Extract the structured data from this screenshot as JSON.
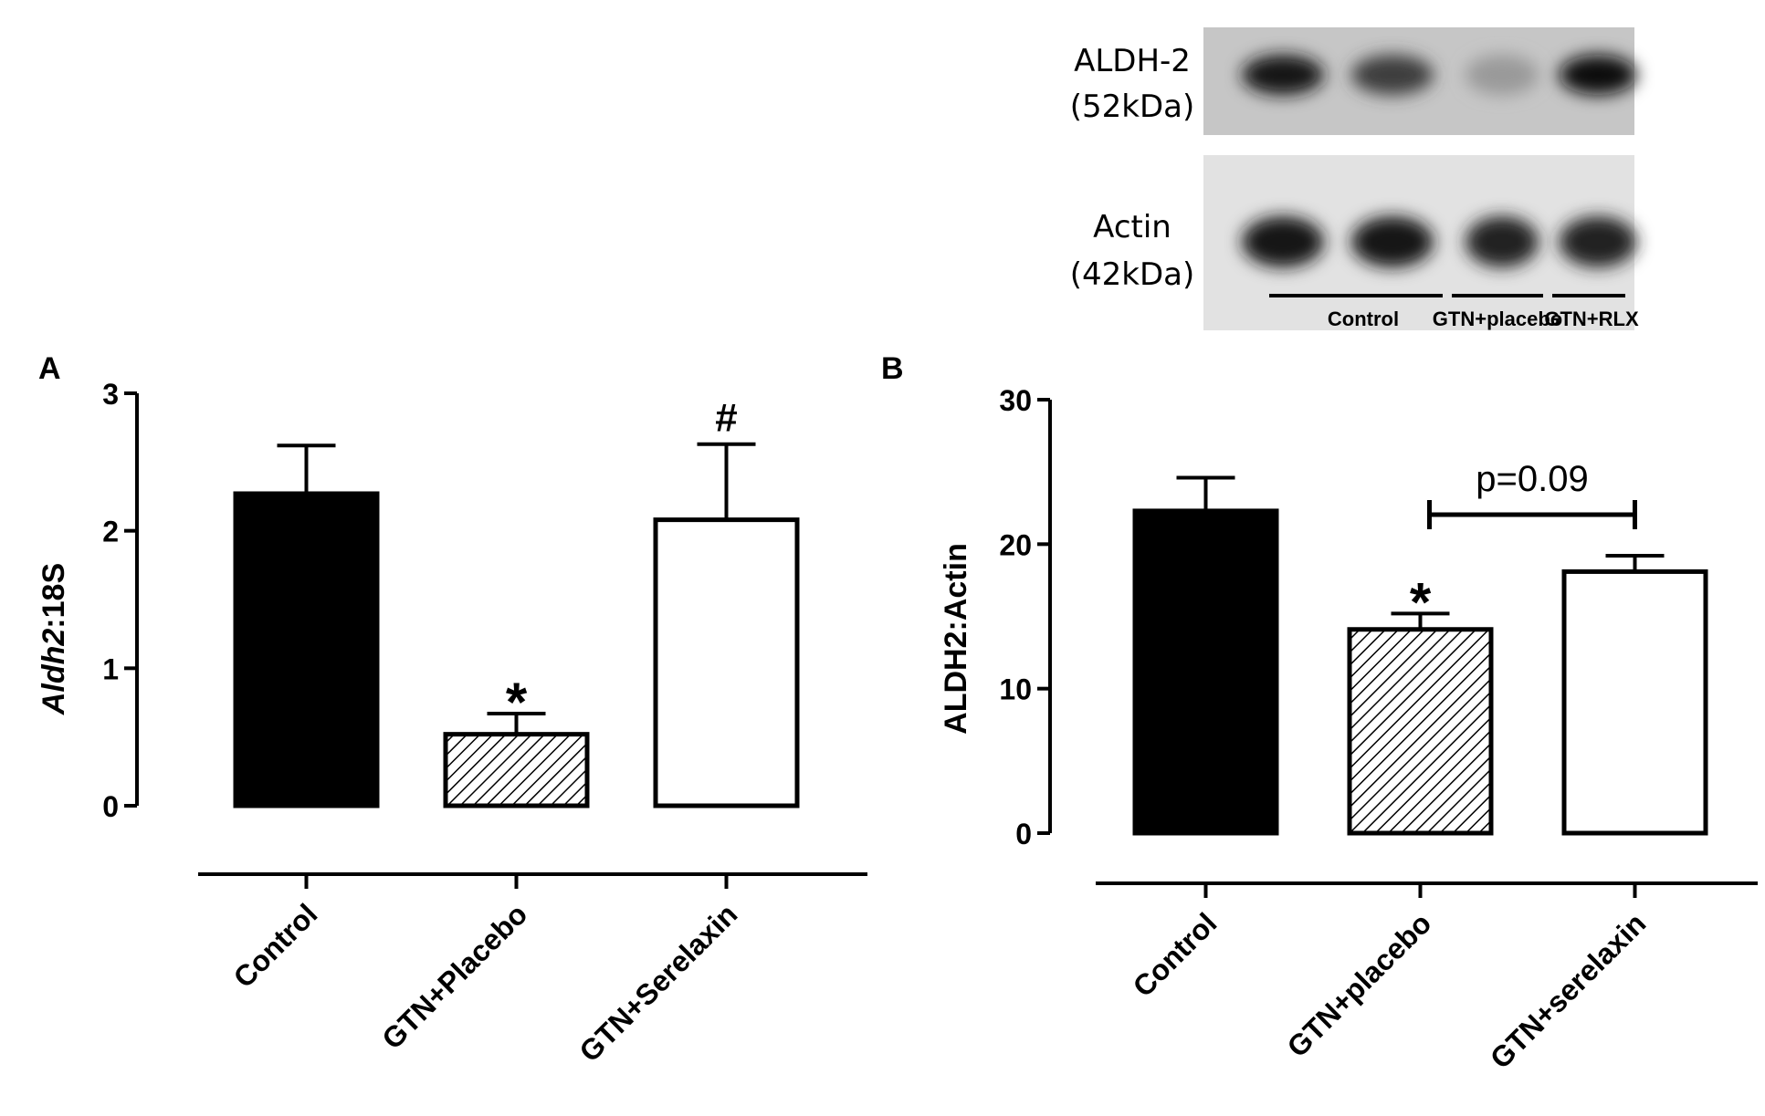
{
  "blot": {
    "bands": [
      {
        "name": "ALDH-2",
        "size": "(52kDa)",
        "intensities": [
          0.95,
          0.75,
          0.25,
          1.0
        ]
      },
      {
        "name": "Actin",
        "size": "(42kDa)",
        "intensities": [
          0.95,
          0.95,
          0.9,
          0.9
        ]
      }
    ],
    "groups": [
      "Control",
      "GTN+placebo",
      "GTN+RLX"
    ]
  },
  "chart_data": [
    {
      "type": "bar",
      "panel_label": "A",
      "ylabel_italic": "Aldh2",
      "ylabel_rest": ":18S",
      "ylim": [
        0,
        3
      ],
      "yticks": [
        0,
        1,
        2,
        3
      ],
      "categories": [
        "Control",
        "GTN+Placebo",
        "GTN+Serelaxin"
      ],
      "values": [
        2.27,
        0.52,
        2.08
      ],
      "errors": [
        0.35,
        0.15,
        0.55
      ],
      "fills": [
        "#000000",
        "hatch",
        "#ffffff"
      ],
      "annotations": [
        "",
        "*",
        "#"
      ]
    },
    {
      "type": "bar",
      "panel_label": "B",
      "ylabel": "ALDH2:Actin",
      "ylim": [
        0,
        30
      ],
      "yticks": [
        0,
        10,
        20,
        30
      ],
      "categories": [
        "Control",
        "GTN+placebo",
        "GTN+serelaxin"
      ],
      "values": [
        22.3,
        14.1,
        18.1
      ],
      "errors": [
        2.3,
        1.1,
        1.1
      ],
      "fills": [
        "#000000",
        "hatch",
        "#ffffff"
      ],
      "annotations": [
        "",
        "*",
        ""
      ],
      "comparison": {
        "from": 1,
        "to": 2,
        "label": "p=0.09"
      }
    }
  ]
}
